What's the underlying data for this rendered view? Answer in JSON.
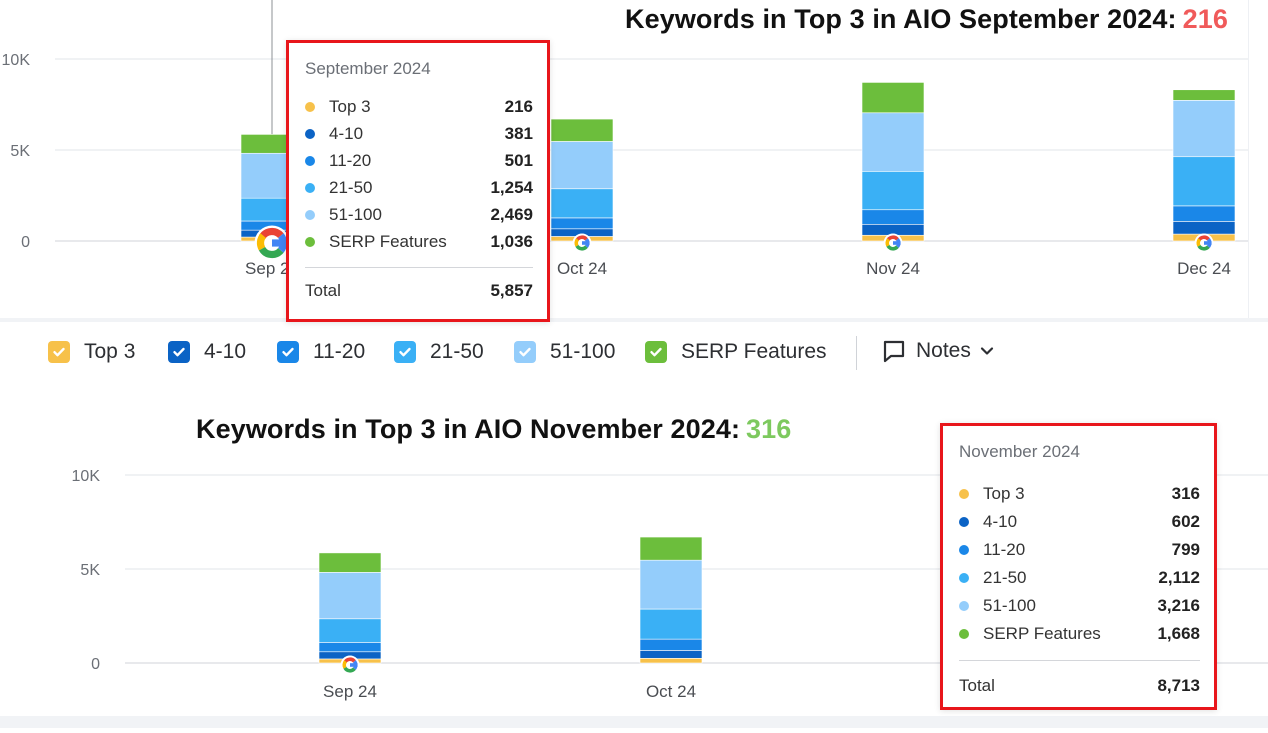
{
  "headline_top": {
    "text": "Keywords in Top 3 in AIO September 2024:",
    "value": "216",
    "value_color": "#f05a5a"
  },
  "headline_bottom": {
    "text": "Keywords in Top 3 in AIO November 2024:",
    "value": "316",
    "value_color": "#7dc95e"
  },
  "colors": {
    "top3": "#f7c14a",
    "4-10": "#0b63c5",
    "11-20": "#1a87e8",
    "21-50": "#3ab0f5",
    "51-100": "#94cdfb",
    "serp": "#6cbe3c"
  },
  "legend": {
    "items": [
      {
        "key": "top3",
        "label": "Top 3",
        "checked": true
      },
      {
        "key": "4-10",
        "label": "4-10",
        "checked": true
      },
      {
        "key": "11-20",
        "label": "11-20",
        "checked": true
      },
      {
        "key": "21-50",
        "label": "21-50",
        "checked": true
      },
      {
        "key": "51-100",
        "label": "51-100",
        "checked": true
      },
      {
        "key": "serp",
        "label": "SERP Features",
        "checked": true
      }
    ],
    "notes_label": "Notes",
    "notes_icon": "comment-icon",
    "chevron_icon": "chevron-down-icon"
  },
  "tooltip_top": {
    "title": "September 2024",
    "rows": [
      {
        "key": "top3",
        "label": "Top 3",
        "value": "216"
      },
      {
        "key": "4-10",
        "label": "4-10",
        "value": "381"
      },
      {
        "key": "11-20",
        "label": "11-20",
        "value": "501"
      },
      {
        "key": "21-50",
        "label": "21-50",
        "value": "1,254"
      },
      {
        "key": "51-100",
        "label": "51-100",
        "value": "2,469"
      },
      {
        "key": "serp",
        "label": "SERP Features",
        "value": "1,036"
      }
    ],
    "total_label": "Total",
    "total_value": "5,857"
  },
  "tooltip_bottom": {
    "title": "November 2024",
    "rows": [
      {
        "key": "top3",
        "label": "Top 3",
        "value": "316"
      },
      {
        "key": "4-10",
        "label": "4-10",
        "value": "602"
      },
      {
        "key": "11-20",
        "label": "11-20",
        "value": "799"
      },
      {
        "key": "21-50",
        "label": "21-50",
        "value": "2,112"
      },
      {
        "key": "51-100",
        "label": "51-100",
        "value": "3,216"
      },
      {
        "key": "serp",
        "label": "SERP Features",
        "value": "1,668"
      }
    ],
    "total_label": "Total",
    "total_value": "8,713"
  },
  "chart_data": [
    {
      "type": "bar",
      "stacked": true,
      "categories": [
        "Sep 24",
        "Oct 24",
        "Nov 24",
        "Dec 24"
      ],
      "y_ticks": [
        "0",
        "5K",
        "10K"
      ],
      "ylim": [
        0,
        10000
      ],
      "grid": true,
      "series": [
        {
          "name": "Top 3",
          "key": "top3",
          "values": [
            216,
            250,
            316,
            380
          ]
        },
        {
          "name": "4-10",
          "key": "4-10",
          "values": [
            381,
            420,
            602,
            700
          ]
        },
        {
          "name": "11-20",
          "key": "11-20",
          "values": [
            501,
            600,
            799,
            850
          ]
        },
        {
          "name": "21-50",
          "key": "21-50",
          "values": [
            1254,
            1600,
            2112,
            2700
          ]
        },
        {
          "name": "51-100",
          "key": "51-100",
          "values": [
            2469,
            2600,
            3216,
            3100
          ]
        },
        {
          "name": "SERP Features",
          "key": "serp",
          "values": [
            1036,
            1230,
            1668,
            580
          ]
        }
      ]
    },
    {
      "type": "bar",
      "stacked": true,
      "categories": [
        "Sep 24",
        "Oct 24"
      ],
      "y_ticks": [
        "0",
        "5K",
        "10K"
      ],
      "ylim": [
        0,
        10000
      ],
      "grid": true,
      "series": [
        {
          "name": "Top 3",
          "key": "top3",
          "values": [
            216,
            250
          ]
        },
        {
          "name": "4-10",
          "key": "4-10",
          "values": [
            381,
            420
          ]
        },
        {
          "name": "11-20",
          "key": "11-20",
          "values": [
            501,
            600
          ]
        },
        {
          "name": "21-50",
          "key": "21-50",
          "values": [
            1254,
            1600
          ]
        },
        {
          "name": "51-100",
          "key": "51-100",
          "values": [
            2469,
            2600
          ]
        },
        {
          "name": "SERP Features",
          "key": "serp",
          "values": [
            1036,
            1230
          ]
        }
      ]
    }
  ]
}
